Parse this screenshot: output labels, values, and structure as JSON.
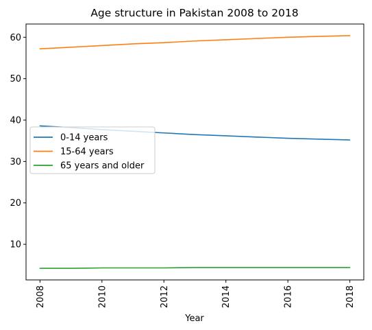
{
  "chart_data": {
    "type": "line",
    "title": "Age structure in Pakistan 2008 to 2018",
    "xlabel": "Year",
    "ylabel": "",
    "x": [
      2008,
      2009,
      2010,
      2011,
      2012,
      2013,
      2014,
      2015,
      2016,
      2017,
      2018
    ],
    "xticks": [
      "2008",
      "2010",
      "2012",
      "2014",
      "2016",
      "2018"
    ],
    "yticks": [
      "10",
      "20",
      "30",
      "40",
      "50",
      "60"
    ],
    "xlim": [
      2007.55,
      2018.45
    ],
    "ylim": [
      1.4,
      63.2
    ],
    "grid": false,
    "legend_position": "center-left",
    "series": [
      {
        "name": "0-14 years",
        "color": "#1f77b4",
        "values": [
          38.6,
          38.2,
          37.7,
          37.3,
          36.9,
          36.5,
          36.2,
          35.9,
          35.6,
          35.4,
          35.2
        ]
      },
      {
        "name": "15-64 years",
        "color": "#ff7f0e",
        "values": [
          57.2,
          57.6,
          58.0,
          58.4,
          58.7,
          59.1,
          59.4,
          59.7,
          60.0,
          60.2,
          60.4
        ]
      },
      {
        "name": "65 years and older",
        "color": "#2ca02c",
        "values": [
          4.2,
          4.2,
          4.3,
          4.3,
          4.3,
          4.4,
          4.4,
          4.4,
          4.4,
          4.4,
          4.4
        ]
      }
    ]
  }
}
